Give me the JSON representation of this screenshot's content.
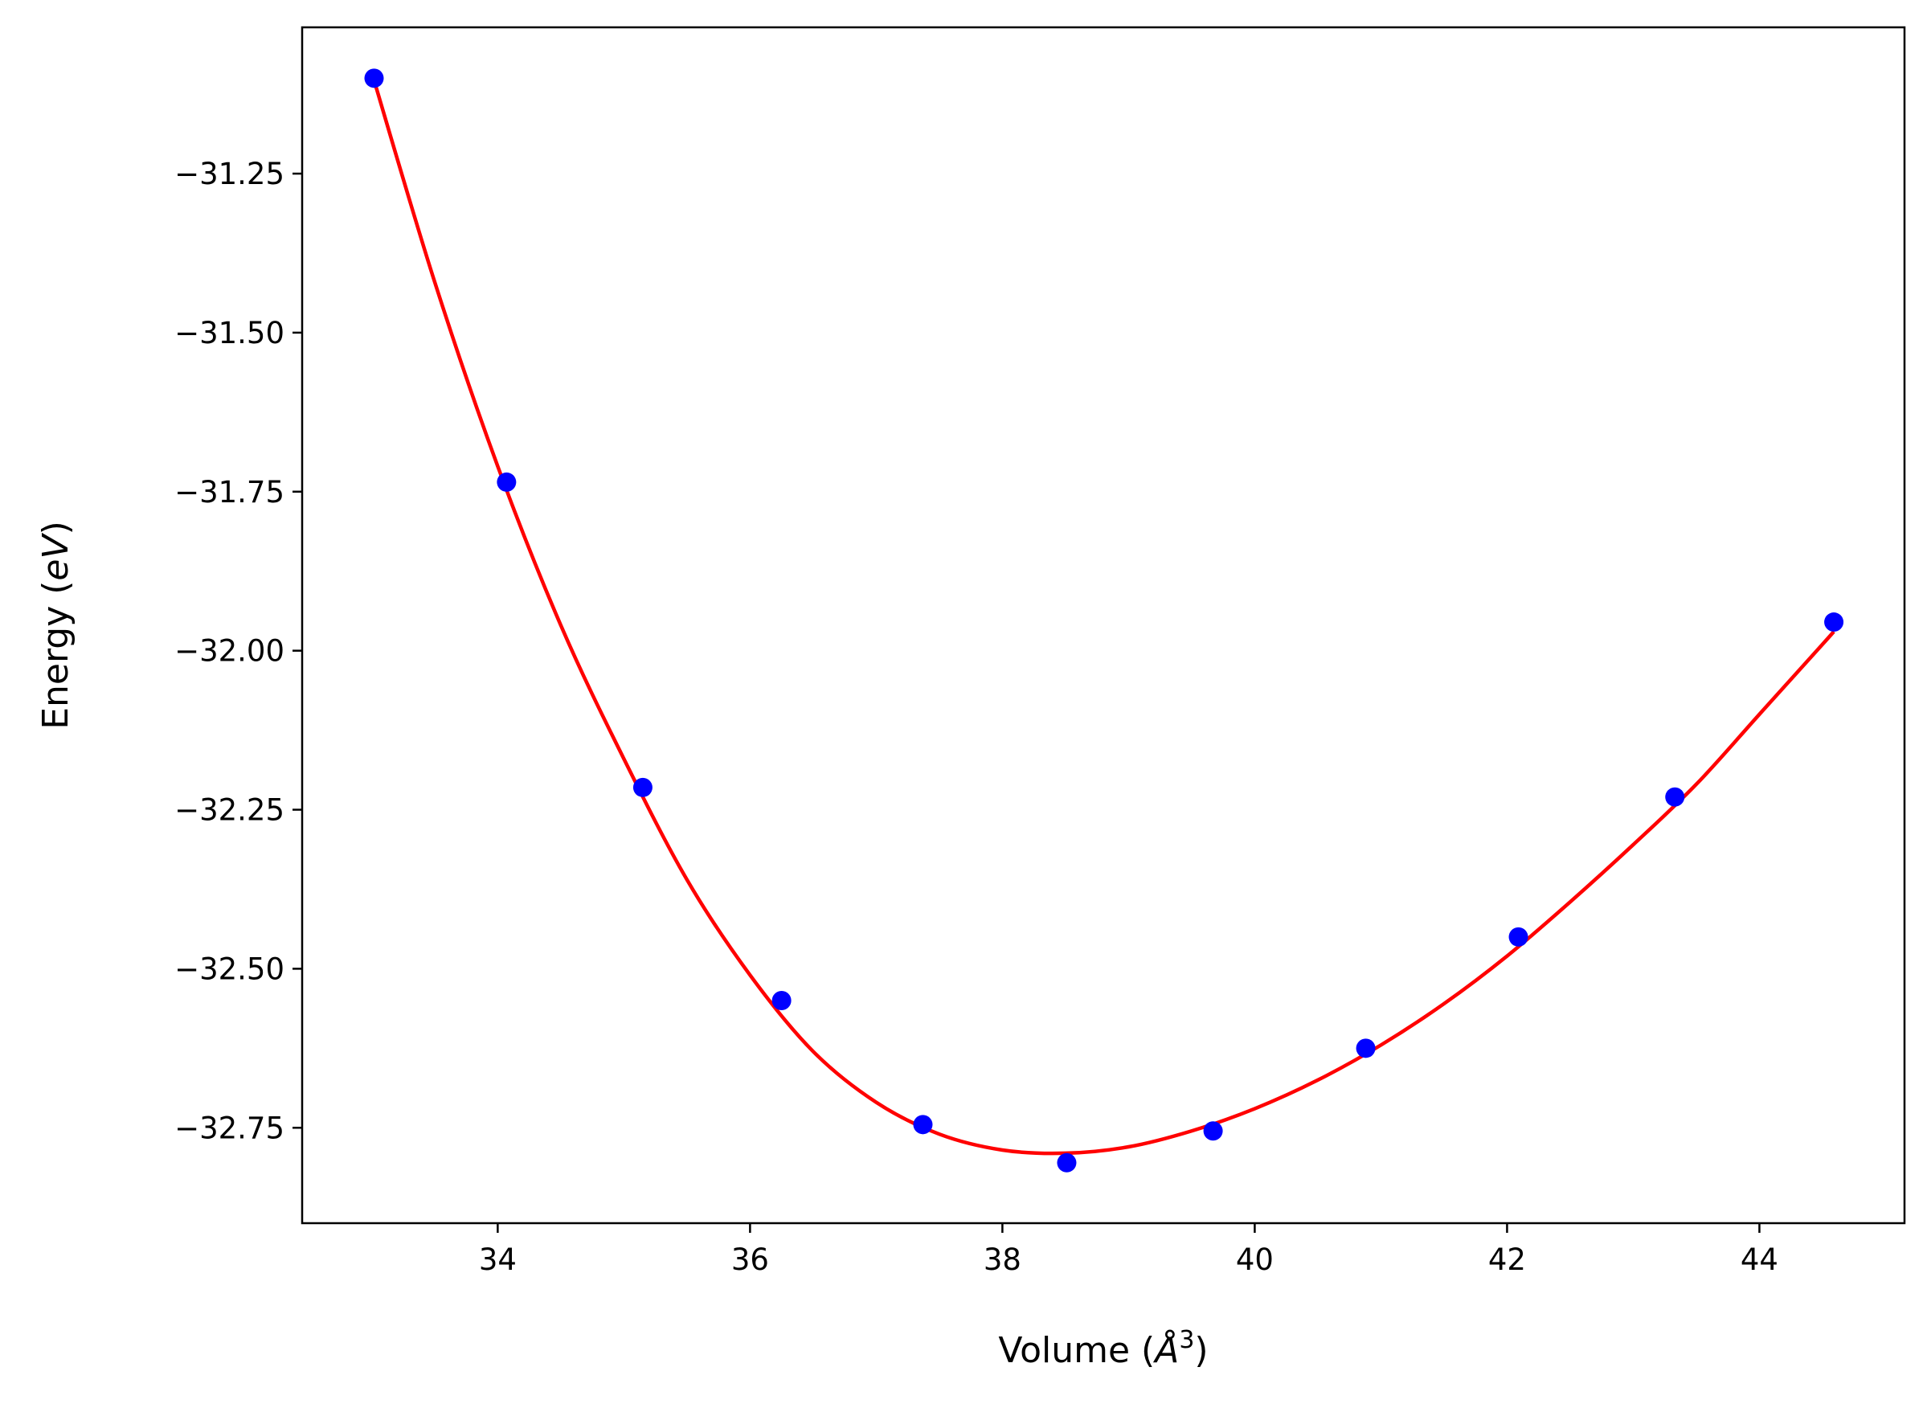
{
  "chart_data": {
    "type": "scatter",
    "xlabel": {
      "prefix": "Volume (",
      "italic": "Å",
      "sup": "3",
      "suffix": ")"
    },
    "ylabel": {
      "prefix": "Energy (",
      "italic": "eV",
      "suffix": ")"
    },
    "xlim": [
      32.45,
      45.15
    ],
    "ylim": [
      -32.9,
      -31.02
    ],
    "xticks": [
      34,
      36,
      38,
      40,
      42,
      44
    ],
    "yticks": [
      -31.25,
      -31.5,
      -31.75,
      -32.0,
      -32.25,
      -32.5,
      -32.75
    ],
    "xtick_labels": [
      "34",
      "36",
      "38",
      "40",
      "42",
      "44"
    ],
    "ytick_labels": [
      "−31.25",
      "−31.50",
      "−31.75",
      "−32.00",
      "−32.25",
      "−32.50",
      "−32.75"
    ],
    "grid": false,
    "series": [
      {
        "kind": "points",
        "color": "#0000ff",
        "x": [
          33.02,
          34.07,
          35.15,
          36.25,
          37.37,
          38.51,
          39.67,
          40.88,
          42.09,
          43.33,
          44.59
        ],
        "y": [
          -31.1,
          -31.735,
          -32.215,
          -32.55,
          -32.745,
          -32.805,
          -32.755,
          -32.625,
          -32.45,
          -32.23,
          -31.955
        ]
      },
      {
        "kind": "fit-curve",
        "color": "#ff0000",
        "x": [
          33.0,
          33.5,
          34.0,
          34.5,
          35.0,
          35.5,
          36.0,
          36.5,
          37.0,
          37.5,
          38.0,
          38.5,
          39.0,
          39.5,
          40.0,
          40.5,
          41.0,
          41.5,
          42.0,
          42.5,
          43.0,
          43.5,
          44.0,
          44.5,
          44.59
        ],
        "y": [
          -31.09,
          -31.42,
          -31.71,
          -31.96,
          -32.17,
          -32.36,
          -32.51,
          -32.63,
          -32.71,
          -32.76,
          -32.785,
          -32.79,
          -32.78,
          -32.755,
          -32.72,
          -32.675,
          -32.62,
          -32.555,
          -32.48,
          -32.395,
          -32.305,
          -32.21,
          -32.1,
          -31.99,
          -31.97
        ]
      }
    ]
  },
  "colors": {
    "frame": "#000000",
    "points": "#0000ff",
    "curve": "#ff0000"
  }
}
